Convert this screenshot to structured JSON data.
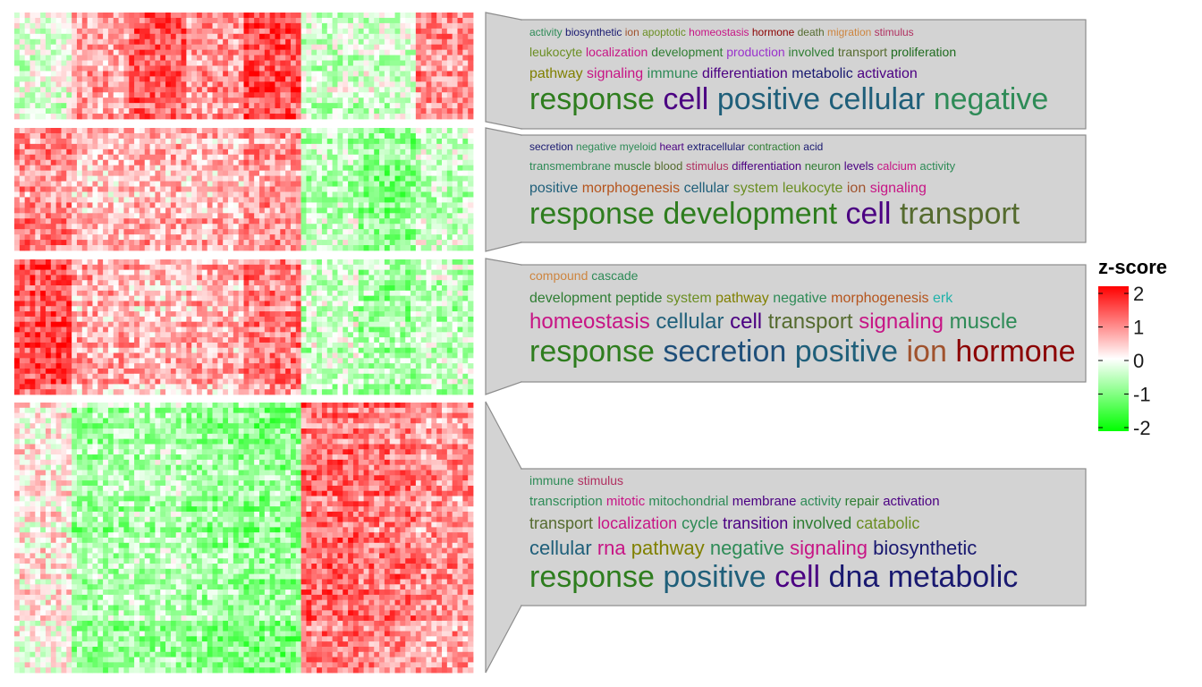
{
  "legend": {
    "title": "z-score",
    "ticks": [
      "2",
      "1",
      "0",
      "-1",
      "-2"
    ],
    "colors": {
      "low": "#00ff00",
      "mid": "#ffffff",
      "high": "#ff0000"
    }
  },
  "chart_data": {
    "type": "heatmap",
    "value_range": [
      -2,
      2
    ],
    "clusters": [
      {
        "id": "cluster-1",
        "column_pattern": [
          -0.2,
          0.7,
          1.3,
          0.8,
          1.4,
          -0.4,
          -0.3,
          0.9
        ],
        "wordcloud": [
          [
            [
              "activity",
              "#2e8b57"
            ],
            [
              "biosynthetic",
              "#191970"
            ],
            [
              "ion",
              "#a0522d"
            ],
            [
              "apoptotic",
              "#6b8e23"
            ],
            [
              "homeostasis",
              "#c71585"
            ],
            [
              "hormone",
              "#8b0000"
            ],
            [
              "death",
              "#556b2f"
            ],
            [
              "migration",
              "#cd853f"
            ],
            [
              "stimulus",
              "#b03060"
            ]
          ],
          [
            [
              "leukocyte",
              "#6b8e23"
            ],
            [
              "localization",
              "#c71585"
            ],
            [
              "development",
              "#2e7d32"
            ],
            [
              "production",
              "#9932cc"
            ],
            [
              "involved",
              "#2e7d32"
            ],
            [
              "transport",
              "#556b2f"
            ],
            [
              "proliferation",
              "#1e6b1e"
            ]
          ],
          [
            [
              "pathway",
              "#808000"
            ],
            [
              "signaling",
              "#c71585"
            ],
            [
              "immune",
              "#2e8b57"
            ],
            [
              "differentiation",
              "#4b0082"
            ],
            [
              "metabolic",
              "#191970"
            ],
            [
              "activation",
              "#4b0082"
            ]
          ],
          [
            [
              "response",
              "#2e7d1e"
            ],
            [
              "cell",
              "#4b0082"
            ],
            [
              "positive",
              "#1f5f7a"
            ],
            [
              "cellular",
              "#1f5f7a"
            ],
            [
              "negative",
              "#2e8b57"
            ]
          ]
        ]
      },
      {
        "id": "cluster-2",
        "column_pattern": [
          0.9,
          0.5,
          0.6,
          0.5,
          0.8,
          -0.5,
          -0.9,
          -0.4
        ],
        "wordcloud": [
          [
            [
              "secretion",
              "#191970"
            ],
            [
              "negative",
              "#2e8b57"
            ],
            [
              "myeloid",
              "#2e8b57"
            ],
            [
              "heart",
              "#4b0082"
            ],
            [
              "extracellular",
              "#191970"
            ],
            [
              "contraction",
              "#2e7d32"
            ],
            [
              "acid",
              "#191970"
            ]
          ],
          [
            [
              "transmembrane",
              "#2e8b57"
            ],
            [
              "muscle",
              "#2e7d32"
            ],
            [
              "blood",
              "#556b2f"
            ],
            [
              "stimulus",
              "#b03060"
            ],
            [
              "differentiation",
              "#4b0082"
            ],
            [
              "neuron",
              "#2e7d32"
            ],
            [
              "levels",
              "#4b0082"
            ],
            [
              "calcium",
              "#c71585"
            ],
            [
              "activity",
              "#2e8b57"
            ]
          ],
          [
            [
              "positive",
              "#1f5f7a"
            ],
            [
              "morphogenesis",
              "#b5541c"
            ],
            [
              "cellular",
              "#1f5f7a"
            ],
            [
              "system",
              "#6b8e23"
            ],
            [
              "leukocyte",
              "#6b8e23"
            ],
            [
              "ion",
              "#a0522d"
            ],
            [
              "signaling",
              "#c71585"
            ]
          ],
          [
            [
              "response",
              "#2e7d1e"
            ],
            [
              "development",
              "#2e7d1e"
            ],
            [
              "cell",
              "#4b0082"
            ],
            [
              "transport",
              "#556b2f"
            ]
          ]
        ]
      },
      {
        "id": "cluster-3",
        "column_pattern": [
          1.4,
          0.6,
          0.5,
          0.6,
          1.0,
          -0.4,
          -0.7,
          -0.5
        ],
        "wordcloud": [
          [
            [
              "compound",
              "#cd853f"
            ],
            [
              "cascade",
              "#2e8b57"
            ]
          ],
          [
            [
              "development",
              "#2e7d32"
            ],
            [
              "peptide",
              "#2e7d32"
            ],
            [
              "system",
              "#6b8e23"
            ],
            [
              "pathway",
              "#808000"
            ],
            [
              "negative",
              "#2e8b57"
            ],
            [
              "morphogenesis",
              "#b5541c"
            ],
            [
              "erk",
              "#20b2aa"
            ]
          ],
          [
            [
              "homeostasis",
              "#c71585"
            ],
            [
              "cellular",
              "#1f5f7a"
            ],
            [
              "cell",
              "#4b0082"
            ],
            [
              "transport",
              "#556b2f"
            ],
            [
              "signaling",
              "#c71585"
            ],
            [
              "muscle",
              "#2e8b57"
            ]
          ],
          [
            [
              "response",
              "#2e7d1e"
            ],
            [
              "secretion",
              "#1f4f7a"
            ],
            [
              "positive",
              "#1f5f7a"
            ],
            [
              "ion",
              "#a0522d"
            ],
            [
              "hormone",
              "#8b0000"
            ]
          ]
        ]
      },
      {
        "id": "cluster-4",
        "column_pattern": [
          0.1,
          -0.7,
          -0.6,
          -0.8,
          -0.9,
          1.1,
          1.0,
          0.8
        ],
        "wordcloud": [
          [
            [
              "immune",
              "#2e8b57"
            ],
            [
              "stimulus",
              "#b03060"
            ]
          ],
          [
            [
              "transcription",
              "#2e8b57"
            ],
            [
              "mitotic",
              "#c71585"
            ],
            [
              "mitochondrial",
              "#2e8b57"
            ],
            [
              "membrane",
              "#4b0082"
            ],
            [
              "activity",
              "#2e8b57"
            ],
            [
              "repair",
              "#2e7d32"
            ],
            [
              "activation",
              "#4b0082"
            ]
          ],
          [
            [
              "transport",
              "#556b2f"
            ],
            [
              "localization",
              "#c71585"
            ],
            [
              "cycle",
              "#2e8b57"
            ],
            [
              "transition",
              "#4b0082"
            ],
            [
              "involved",
              "#2e7d32"
            ],
            [
              "catabolic",
              "#6b8e23"
            ]
          ],
          [
            [
              "cellular",
              "#1f5f7a"
            ],
            [
              "rna",
              "#c71585"
            ],
            [
              "pathway",
              "#808000"
            ],
            [
              "negative",
              "#2e8b57"
            ],
            [
              "signaling",
              "#c71585"
            ],
            [
              "biosynthetic",
              "#191970"
            ]
          ],
          [
            [
              "response",
              "#2e7d1e"
            ],
            [
              "positive",
              "#1f5f7a"
            ],
            [
              "cell",
              "#4b0082"
            ],
            [
              "dna",
              "#191970"
            ],
            [
              "metabolic",
              "#191970"
            ]
          ]
        ]
      }
    ]
  }
}
